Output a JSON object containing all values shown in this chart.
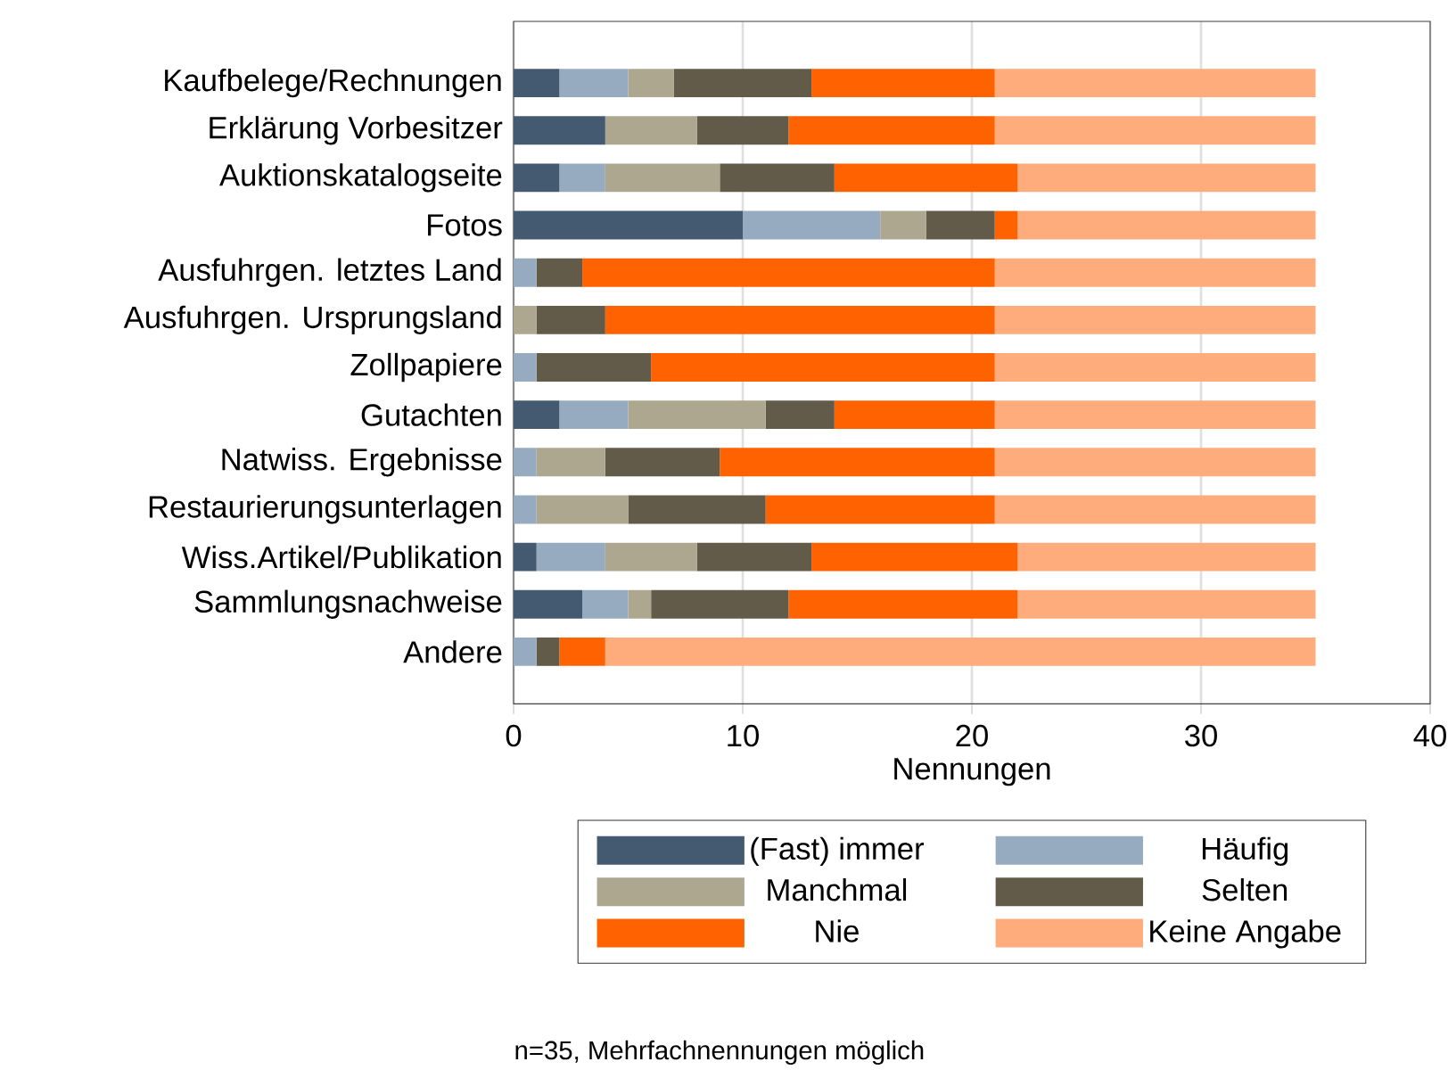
{
  "chart_data": {
    "type": "bar",
    "orientation": "horizontal",
    "stacked": true,
    "xlabel": "Nennungen",
    "categories": [
      "Kaufbelege/Rechnungen",
      "Erklärung Vorbesitzer",
      "Auktionskatalogseite",
      "Fotos",
      "Ausfuhrgen. letztes Land",
      "Ausfuhrgen. Ursprungsland",
      "Zollpapiere",
      "Gutachten",
      "Natwiss. Ergebnisse",
      "Restaurierungsunterlagen",
      "Wiss.Artikel/Publikation",
      "Sammlungsnachweise",
      "Andere"
    ],
    "series": [
      {
        "name": "(Fast) immer",
        "color": "#435a70",
        "values": [
          2,
          4,
          2,
          10,
          0,
          0,
          0,
          2,
          0,
          0,
          1,
          3,
          0
        ]
      },
      {
        "name": "Häufig",
        "color": "#97abc0",
        "values": [
          3,
          0,
          2,
          6,
          1,
          0,
          1,
          3,
          1,
          1,
          3,
          2,
          1
        ]
      },
      {
        "name": "Manchmal",
        "color": "#ada78f",
        "values": [
          2,
          4,
          5,
          2,
          0,
          1,
          0,
          6,
          3,
          4,
          4,
          1,
          0
        ]
      },
      {
        "name": "Selten",
        "color": "#625b49",
        "values": [
          6,
          4,
          5,
          3,
          2,
          3,
          5,
          3,
          5,
          6,
          5,
          6,
          1
        ]
      },
      {
        "name": "Nie",
        "color": "#ff6200",
        "values": [
          8,
          9,
          8,
          1,
          18,
          17,
          15,
          7,
          12,
          10,
          9,
          10,
          2
        ]
      },
      {
        "name": "Keine Angabe",
        "color": "#ffac7c",
        "values": [
          14,
          14,
          13,
          13,
          14,
          14,
          14,
          14,
          14,
          14,
          13,
          13,
          31
        ]
      }
    ],
    "xlim": [
      0,
      40
    ],
    "xticks": [
      0,
      10,
      20,
      30,
      40
    ],
    "grid": "x",
    "legend": "bottom",
    "annotations": [
      "n=35, Mehrfachnennungen möglich"
    ]
  }
}
